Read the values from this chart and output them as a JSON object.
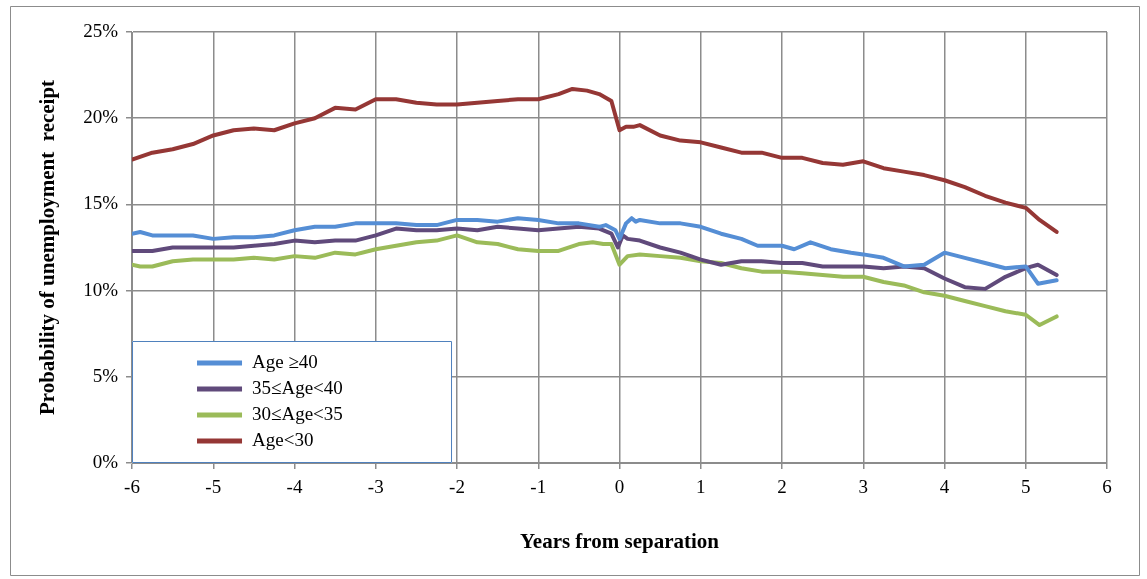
{
  "chart_data": {
    "type": "line",
    "xlabel": "Years from separation",
    "ylabel": "Probability of unemployment  receipt",
    "xlim": [
      -6,
      6
    ],
    "xticks": [
      -6,
      -5,
      -4,
      -3,
      -2,
      -1,
      0,
      1,
      2,
      3,
      4,
      5,
      6
    ],
    "ylim": [
      0,
      25
    ],
    "yticks": [
      {
        "value": 0,
        "label": "0%"
      },
      {
        "value": 5,
        "label": "5%"
      },
      {
        "value": 10,
        "label": "10%"
      },
      {
        "value": 15,
        "label": "15%"
      },
      {
        "value": 20,
        "label": "20%"
      },
      {
        "value": 25,
        "label": "25%"
      }
    ],
    "grid": true,
    "legend": "bottom left",
    "marker": "none",
    "line_style": "solid",
    "series": [
      {
        "name": "Age ≥40",
        "color": "#558ed5",
        "x": [
          -6,
          -5.9,
          -5.75,
          -5.25,
          -5,
          -4.75,
          -4.5,
          -4.25,
          -4,
          -3.75,
          -3.5,
          -3.25,
          -2.75,
          -2.5,
          -2.25,
          -2,
          -1.75,
          -1.5,
          -1.25,
          -1,
          -0.75,
          -0.5,
          -0.25,
          -0.17,
          -0.05,
          0,
          0.08,
          0.15,
          0.2,
          0.25,
          0.5,
          0.75,
          1,
          1.25,
          1.5,
          1.7,
          2,
          2.15,
          2.35,
          2.6,
          2.85,
          3,
          3.25,
          3.5,
          3.75,
          4,
          4.25,
          4.5,
          4.75,
          5,
          5.15,
          5.38
        ],
        "values": [
          13.3,
          13.4,
          13.2,
          13.2,
          13.0,
          13.1,
          13.1,
          13.2,
          13.5,
          13.7,
          13.7,
          13.9,
          13.9,
          13.8,
          13.8,
          14.1,
          14.1,
          14.0,
          14.2,
          14.1,
          13.9,
          13.9,
          13.7,
          13.8,
          13.5,
          13.0,
          13.9,
          14.2,
          14.0,
          14.1,
          13.9,
          13.9,
          13.7,
          13.3,
          13.0,
          12.6,
          12.6,
          12.4,
          12.8,
          12.4,
          12.2,
          12.1,
          11.9,
          11.4,
          11.5,
          12.2,
          11.9,
          11.6,
          11.3,
          11.4,
          10.4,
          10.6
        ]
      },
      {
        "name": "35≤Age<40",
        "color": "#604a7b",
        "x": [
          -6,
          -5.75,
          -5.5,
          -5,
          -4.75,
          -4.5,
          -4.25,
          -4,
          -3.75,
          -3.5,
          -3.25,
          -3,
          -2.75,
          -2.5,
          -2.25,
          -2,
          -1.75,
          -1.5,
          -1.25,
          -1,
          -0.75,
          -0.5,
          -0.25,
          -0.1,
          -0.02,
          0.04,
          0.1,
          0.25,
          0.5,
          0.75,
          1,
          1.25,
          1.5,
          1.75,
          2,
          2.25,
          2.5,
          2.75,
          3,
          3.25,
          3.5,
          3.75,
          4,
          4.25,
          4.5,
          4.75,
          5,
          5.15,
          5.38
        ],
        "values": [
          12.3,
          12.3,
          12.5,
          12.5,
          12.5,
          12.6,
          12.7,
          12.9,
          12.8,
          12.9,
          12.9,
          13.2,
          13.6,
          13.5,
          13.5,
          13.6,
          13.5,
          13.7,
          13.6,
          13.5,
          13.6,
          13.7,
          13.6,
          13.3,
          12.5,
          13.2,
          13.0,
          12.9,
          12.5,
          12.2,
          11.8,
          11.5,
          11.7,
          11.7,
          11.6,
          11.6,
          11.4,
          11.4,
          11.4,
          11.3,
          11.4,
          11.3,
          10.7,
          10.2,
          10.1,
          10.8,
          11.3,
          11.5,
          10.9
        ]
      },
      {
        "name": "30≤Age<35",
        "color": "#9bbb59",
        "x": [
          -6,
          -5.9,
          -5.75,
          -5.5,
          -5.25,
          -5,
          -4.75,
          -4.5,
          -4.25,
          -4,
          -3.75,
          -3.5,
          -3.25,
          -3,
          -2.75,
          -2.5,
          -2.25,
          -2,
          -1.75,
          -1.5,
          -1.25,
          -1,
          -0.75,
          -0.5,
          -0.33,
          -0.2,
          -0.1,
          0,
          0.1,
          0.25,
          0.5,
          0.75,
          1,
          1.25,
          1.5,
          1.75,
          2,
          2.25,
          2.5,
          2.75,
          3,
          3.25,
          3.5,
          3.75,
          4,
          4.25,
          4.5,
          4.75,
          5,
          5.17,
          5.38
        ],
        "values": [
          11.5,
          11.4,
          11.4,
          11.7,
          11.8,
          11.8,
          11.8,
          11.9,
          11.8,
          12.0,
          11.9,
          12.2,
          12.1,
          12.4,
          12.6,
          12.8,
          12.9,
          13.2,
          12.8,
          12.7,
          12.4,
          12.3,
          12.3,
          12.7,
          12.8,
          12.7,
          12.7,
          11.5,
          12.0,
          12.1,
          12.0,
          11.9,
          11.7,
          11.6,
          11.3,
          11.1,
          11.1,
          11.0,
          10.9,
          10.8,
          10.8,
          10.5,
          10.3,
          9.9,
          9.7,
          9.4,
          9.1,
          8.8,
          8.6,
          8.0,
          8.5
        ]
      },
      {
        "name": "Age<30",
        "color": "#953735",
        "x": [
          -6,
          -5.75,
          -5.5,
          -5.25,
          -5,
          -4.75,
          -4.5,
          -4.25,
          -4,
          -3.75,
          -3.5,
          -3.25,
          -3,
          -2.75,
          -2.5,
          -2.25,
          -2,
          -1.75,
          -1.5,
          -1.25,
          -1,
          -0.75,
          -0.58,
          -0.4,
          -0.25,
          -0.1,
          0,
          0.08,
          0.17,
          0.25,
          0.5,
          0.75,
          1,
          1.25,
          1.5,
          1.75,
          2,
          2.25,
          2.5,
          2.75,
          3,
          3.25,
          3.5,
          3.75,
          4,
          4.25,
          4.5,
          4.75,
          5,
          5.17,
          5.38
        ],
        "values": [
          17.6,
          18.0,
          18.2,
          18.5,
          19.0,
          19.3,
          19.4,
          19.3,
          19.7,
          20.0,
          20.6,
          20.5,
          21.1,
          21.1,
          20.9,
          20.8,
          20.8,
          20.9,
          21.0,
          21.1,
          21.1,
          21.4,
          21.7,
          21.6,
          21.4,
          21.0,
          19.3,
          19.5,
          19.5,
          19.6,
          19.0,
          18.7,
          18.6,
          18.3,
          18.0,
          18.0,
          17.7,
          17.7,
          17.4,
          17.3,
          17.5,
          17.1,
          16.9,
          16.7,
          16.4,
          16.0,
          15.5,
          15.1,
          14.8,
          14.1,
          13.4
        ]
      }
    ]
  }
}
